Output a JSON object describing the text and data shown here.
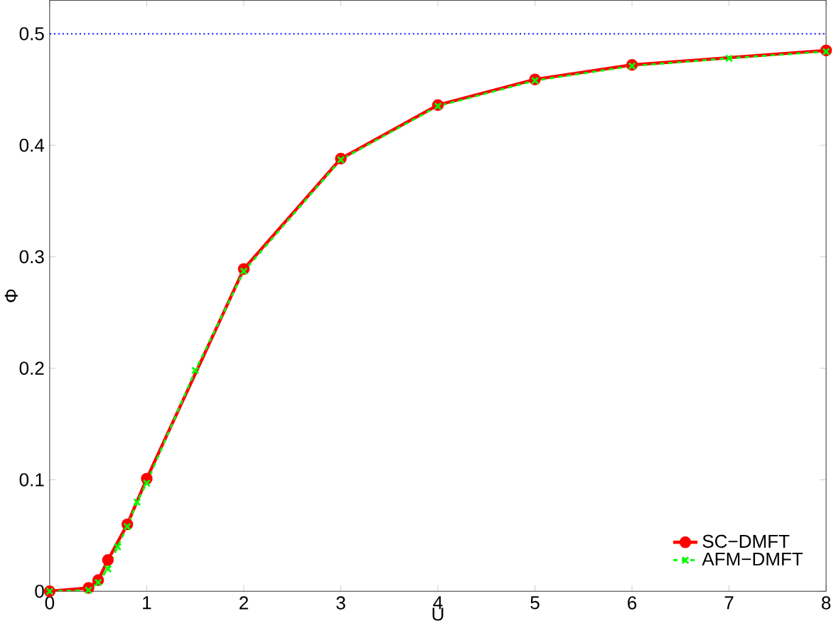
{
  "chart_data": {
    "type": "line",
    "xlabel": "U",
    "ylabel": "Φ",
    "xlim": [
      0,
      8
    ],
    "ylim": [
      0,
      0.53
    ],
    "xticks": [
      0,
      1,
      2,
      3,
      4,
      5,
      6,
      7,
      8
    ],
    "yticks": [
      0,
      0.1,
      0.2,
      0.3,
      0.4,
      0.5
    ],
    "legend": "bottom right",
    "grid": false,
    "series": [
      {
        "name": "SC−DMFT",
        "color": "#ff0000",
        "marker": "circle",
        "line_style": "solid",
        "x": [
          0,
          0.4,
          0.5,
          0.6,
          0.8,
          1,
          2,
          3,
          4,
          5,
          6,
          8
        ],
        "values": [
          0,
          0.003,
          0.01,
          0.028,
          0.06,
          0.101,
          0.289,
          0.388,
          0.436,
          0.459,
          0.472,
          0.485
        ]
      },
      {
        "name": "AFM−DMFT",
        "color": "#00ff00",
        "marker": "cross",
        "line_style": "dashed",
        "x": [
          0,
          0.4,
          0.5,
          0.6,
          0.7,
          0.8,
          0.9,
          1,
          1.5,
          2,
          3,
          4,
          5,
          6,
          7,
          8
        ],
        "values": [
          0,
          0.001,
          0.008,
          0.02,
          0.04,
          0.058,
          0.08,
          0.097,
          0.198,
          0.287,
          0.387,
          0.435,
          0.458,
          0.471,
          0.478,
          0.484
        ]
      }
    ],
    "ref_lines": [
      {
        "axis": "y",
        "value": 0.5,
        "color": "#0000ff",
        "line_style": "dotted"
      }
    ]
  }
}
